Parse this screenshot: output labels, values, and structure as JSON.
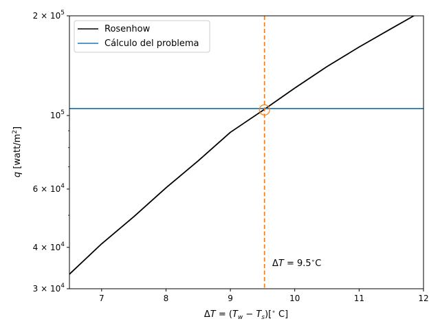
{
  "chart_data": {
    "type": "line",
    "xlabel": "ΔT = (T_w − T_s)[° C]",
    "ylabel": "q [watt/m²]",
    "xlim": [
      6.5,
      12
    ],
    "ylim": [
      30000,
      200000
    ],
    "yscale": "log",
    "grid": false,
    "legend_position": "top-left",
    "x_ticks": [
      7,
      8,
      9,
      10,
      11,
      12
    ],
    "x_tick_labels": [
      "7",
      "8",
      "9",
      "10",
      "11",
      "12"
    ],
    "y_major_ticks": [
      {
        "value": 30000,
        "mantissa": "3",
        "times": true,
        "exp": "4"
      },
      {
        "value": 40000,
        "mantissa": "4",
        "times": true,
        "exp": "4"
      },
      {
        "value": 60000,
        "mantissa": "6",
        "times": true,
        "exp": "4"
      },
      {
        "value": 100000,
        "mantissa": "10",
        "times": false,
        "exp": "5"
      },
      {
        "value": 200000,
        "mantissa": "2",
        "times": true,
        "exp": "5"
      }
    ],
    "y_minor_ticks": [
      50000,
      70000,
      80000,
      90000
    ],
    "series": [
      {
        "name": "Rosenhow",
        "color": "#000000",
        "style": "solid",
        "x": [
          6.5,
          7.0,
          7.5,
          8.0,
          8.5,
          9.0,
          9.5,
          10.0,
          10.5,
          11.0,
          11.5,
          11.85
        ],
        "y": [
          33200,
          41000,
          49500,
          60500,
          73000,
          89000,
          103500,
          121000,
          140500,
          161000,
          183000,
          200000
        ]
      },
      {
        "name": "Cálculo del problema",
        "color": "#1f77b4",
        "style": "solid",
        "x": [
          6.5,
          12
        ],
        "y": [
          105000,
          105000
        ]
      }
    ],
    "annotations": {
      "vline": {
        "x": 9.53,
        "color": "#ff7f0e",
        "style": "dashed"
      },
      "marker": {
        "x": 9.53,
        "y": 104000,
        "color": "#ff7f0e",
        "shape": "open-circle"
      },
      "label": {
        "prefix": "ΔT",
        "suffix": " = 9.5",
        "unit": "C",
        "x": 9.65,
        "y": 36000
      }
    }
  }
}
